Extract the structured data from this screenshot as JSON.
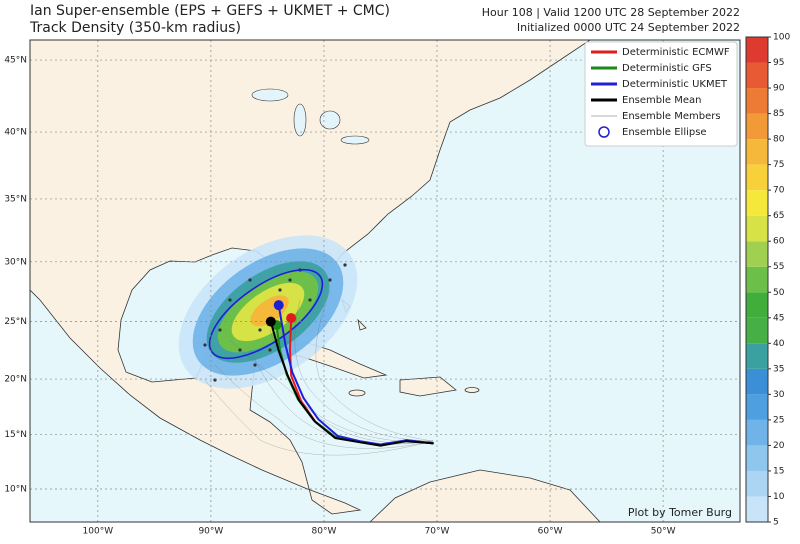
{
  "header": {
    "title": "Ian Super-ensemble (EPS + GEFS + UKMET + CMC)",
    "subtitle": "Track Density (350-km radius)",
    "valid": "Hour 108 | Valid 1200 UTC 28 September 2022",
    "initialized": "Initialized 0000 UTC 24 September 2022"
  },
  "map": {
    "lonlim": [
      -106.0,
      -43.2
    ],
    "lat_ticks": [
      {
        "value": 45,
        "label": "45°N"
      },
      {
        "value": 40,
        "label": "40°N"
      },
      {
        "value": 35,
        "label": "35°N"
      },
      {
        "value": 30,
        "label": "30°N"
      },
      {
        "value": 25,
        "label": "25°N"
      },
      {
        "value": 20,
        "label": "20°N"
      },
      {
        "value": 15,
        "label": "15°N"
      },
      {
        "value": 10,
        "label": "10°N"
      }
    ],
    "lon_ticks": [
      {
        "value": -100,
        "label": "100°W"
      },
      {
        "value": -90,
        "label": "90°W"
      },
      {
        "value": -80,
        "label": "80°W"
      },
      {
        "value": -70,
        "label": "70°W"
      },
      {
        "value": -60,
        "label": "60°W"
      },
      {
        "value": -50,
        "label": "50°W"
      }
    ]
  },
  "legend": [
    {
      "label": "Deterministic ECMWF",
      "color": "#e31a1c",
      "lon": [
        -70.3,
        -72.7,
        -75.0,
        -76.7,
        -78.9,
        -80.7,
        -82.0,
        -82.9,
        -83.0,
        -82.9
      ],
      "lat": [
        14.2,
        14.5,
        14.0,
        14.3,
        14.7,
        16.1,
        18.0,
        20.3,
        22.6,
        25.3
      ]
    },
    {
      "label": "Deterministic GFS",
      "color": "#1a8a1a",
      "lon": [
        -70.3,
        -72.7,
        -75.0,
        -76.9,
        -79.0,
        -80.9,
        -82.3,
        -83.3,
        -83.9,
        -84.2
      ],
      "lat": [
        14.2,
        14.5,
        14.0,
        14.4,
        14.8,
        16.3,
        18.2,
        20.4,
        22.6,
        24.7
      ]
    },
    {
      "label": "Deterministic UKMET",
      "color": "#1f1fd6",
      "lon": [
        -70.3,
        -72.7,
        -75.0,
        -76.8,
        -78.8,
        -80.5,
        -81.8,
        -82.8,
        -83.4,
        -84.0
      ],
      "lat": [
        14.2,
        14.5,
        14.1,
        14.4,
        14.9,
        16.4,
        18.3,
        20.6,
        23.0,
        26.4
      ]
    },
    {
      "label": "Ensemble Mean",
      "color": "#000000",
      "lon": [
        -70.3,
        -72.7,
        -75.0,
        -76.8,
        -79.0,
        -80.8,
        -82.2,
        -83.2,
        -84.0,
        -84.7
      ],
      "lat": [
        14.2,
        14.4,
        14.0,
        14.3,
        14.7,
        16.2,
        18.1,
        20.3,
        22.5,
        25.0
      ]
    },
    {
      "label": "Ensemble Members",
      "color": "#999999"
    },
    {
      "label": "Ensemble Ellipse",
      "color": "#1f1fd6"
    }
  ],
  "colorbar": {
    "ticks": [
      5,
      10,
      15,
      20,
      25,
      30,
      35,
      40,
      45,
      50,
      55,
      60,
      65,
      70,
      75,
      80,
      85,
      90,
      95,
      100
    ],
    "colors": [
      "#c9e4f8",
      "#acd5f3",
      "#8fc6ee",
      "#6fb3e8",
      "#4d9fe0",
      "#3a8fd6",
      "#3aa0a0",
      "#46b046",
      "#3fae3a",
      "#6cc04a",
      "#9fd04f",
      "#d6e245",
      "#f6e83b",
      "#f8d13a",
      "#f5b83a",
      "#f29a38",
      "#ee7b35",
      "#e85a33",
      "#df3a2f"
    ]
  },
  "credit": "Plot by Tomer Burg"
}
